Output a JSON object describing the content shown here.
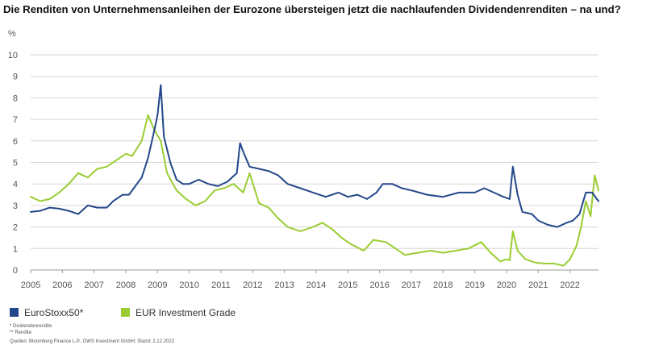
{
  "chart_data": {
    "type": "line",
    "title": "Die Renditen von Unternehmensanleihen der Eurozone übersteigen jetzt die nachlaufenden Dividendenrenditen – na und?",
    "ylabel": "%",
    "ylim": [
      0,
      10
    ],
    "xlim": [
      2005,
      2022.9
    ],
    "yticks": [
      "0",
      "1",
      "2",
      "3",
      "4",
      "5",
      "6",
      "7",
      "8",
      "9",
      "10"
    ],
    "xticks": [
      "2005",
      "2006",
      "2007",
      "2008",
      "2009",
      "2010",
      "2011",
      "2012",
      "2013",
      "2014",
      "2015",
      "2016",
      "2017",
      "2018",
      "2019",
      "2020",
      "2021",
      "2022"
    ],
    "grid": true,
    "legend_position": "bottom-left",
    "series": [
      {
        "name": "EuroStoxx50*",
        "color": "#23478a",
        "x": [
          2005.0,
          2005.3,
          2005.6,
          2005.9,
          2006.2,
          2006.5,
          2006.8,
          2007.1,
          2007.4,
          2007.6,
          2007.9,
          2008.1,
          2008.3,
          2008.5,
          2008.7,
          2008.9,
          2009.0,
          2009.1,
          2009.2,
          2009.4,
          2009.6,
          2009.8,
          2010.0,
          2010.3,
          2010.6,
          2010.9,
          2011.2,
          2011.5,
          2011.6,
          2011.7,
          2011.9,
          2012.2,
          2012.5,
          2012.8,
          2013.1,
          2013.5,
          2013.9,
          2014.3,
          2014.7,
          2015.0,
          2015.3,
          2015.6,
          2015.9,
          2016.1,
          2016.4,
          2016.7,
          2017.0,
          2017.5,
          2018.0,
          2018.5,
          2019.0,
          2019.3,
          2019.6,
          2019.9,
          2020.1,
          2020.2,
          2020.35,
          2020.5,
          2020.8,
          2021.0,
          2021.3,
          2021.6,
          2021.9,
          2022.1,
          2022.3,
          2022.5,
          2022.7,
          2022.9
        ],
        "values": [
          2.7,
          2.75,
          2.9,
          2.85,
          2.75,
          2.6,
          3.0,
          2.9,
          2.9,
          3.2,
          3.5,
          3.5,
          3.9,
          4.3,
          5.2,
          6.5,
          7.2,
          8.6,
          6.2,
          5.0,
          4.2,
          4.0,
          4.0,
          4.2,
          4.0,
          3.9,
          4.1,
          4.5,
          5.9,
          5.5,
          4.8,
          4.7,
          4.6,
          4.4,
          4.0,
          3.8,
          3.6,
          3.4,
          3.6,
          3.4,
          3.5,
          3.3,
          3.6,
          4.0,
          4.0,
          3.8,
          3.7,
          3.5,
          3.4,
          3.6,
          3.6,
          3.8,
          3.6,
          3.4,
          3.3,
          4.8,
          3.5,
          2.7,
          2.6,
          2.3,
          2.1,
          2.0,
          2.2,
          2.3,
          2.6,
          3.6,
          3.6,
          3.2
        ]
      },
      {
        "name": "EUR Investment Grade",
        "color": "#9acd32",
        "x": [
          2005.0,
          2005.3,
          2005.6,
          2005.9,
          2006.2,
          2006.5,
          2006.8,
          2007.1,
          2007.4,
          2007.7,
          2008.0,
          2008.2,
          2008.5,
          2008.7,
          2008.9,
          2009.1,
          2009.3,
          2009.6,
          2009.9,
          2010.2,
          2010.5,
          2010.8,
          2011.1,
          2011.4,
          2011.7,
          2011.9,
          2012.2,
          2012.5,
          2012.8,
          2013.1,
          2013.5,
          2013.9,
          2014.2,
          2014.5,
          2014.8,
          2015.1,
          2015.5,
          2015.8,
          2016.2,
          2016.5,
          2016.8,
          2017.2,
          2017.6,
          2018.0,
          2018.4,
          2018.8,
          2019.2,
          2019.5,
          2019.8,
          2020.0,
          2020.1,
          2020.2,
          2020.35,
          2020.6,
          2020.9,
          2021.2,
          2021.5,
          2021.8,
          2022.0,
          2022.2,
          2022.35,
          2022.5,
          2022.65,
          2022.78,
          2022.9
        ],
        "values": [
          3.4,
          3.2,
          3.3,
          3.6,
          4.0,
          4.5,
          4.3,
          4.7,
          4.8,
          5.1,
          5.4,
          5.3,
          6.0,
          7.2,
          6.5,
          6.0,
          4.5,
          3.7,
          3.3,
          3.0,
          3.2,
          3.7,
          3.8,
          4.0,
          3.6,
          4.5,
          3.1,
          2.9,
          2.4,
          2.0,
          1.8,
          2.0,
          2.2,
          1.9,
          1.5,
          1.2,
          0.9,
          1.4,
          1.3,
          1.0,
          0.7,
          0.8,
          0.9,
          0.8,
          0.9,
          1.0,
          1.3,
          0.8,
          0.4,
          0.5,
          0.45,
          1.8,
          0.9,
          0.5,
          0.35,
          0.3,
          0.3,
          0.2,
          0.5,
          1.1,
          2.0,
          3.2,
          2.5,
          4.4,
          3.7
        ]
      }
    ]
  },
  "legend": {
    "items": [
      {
        "label": "EuroStoxx50*",
        "color": "#23478a"
      },
      {
        "label": "EUR Investment Grade",
        "color": "#9acd32"
      }
    ]
  },
  "footnotes": {
    "note1": "* Dividendenrendite",
    "note2": "** Rendite",
    "source": "Quellen: Bloomberg Finance L.P., DWS Investment GmbH; Stand: 2.12.2022"
  }
}
